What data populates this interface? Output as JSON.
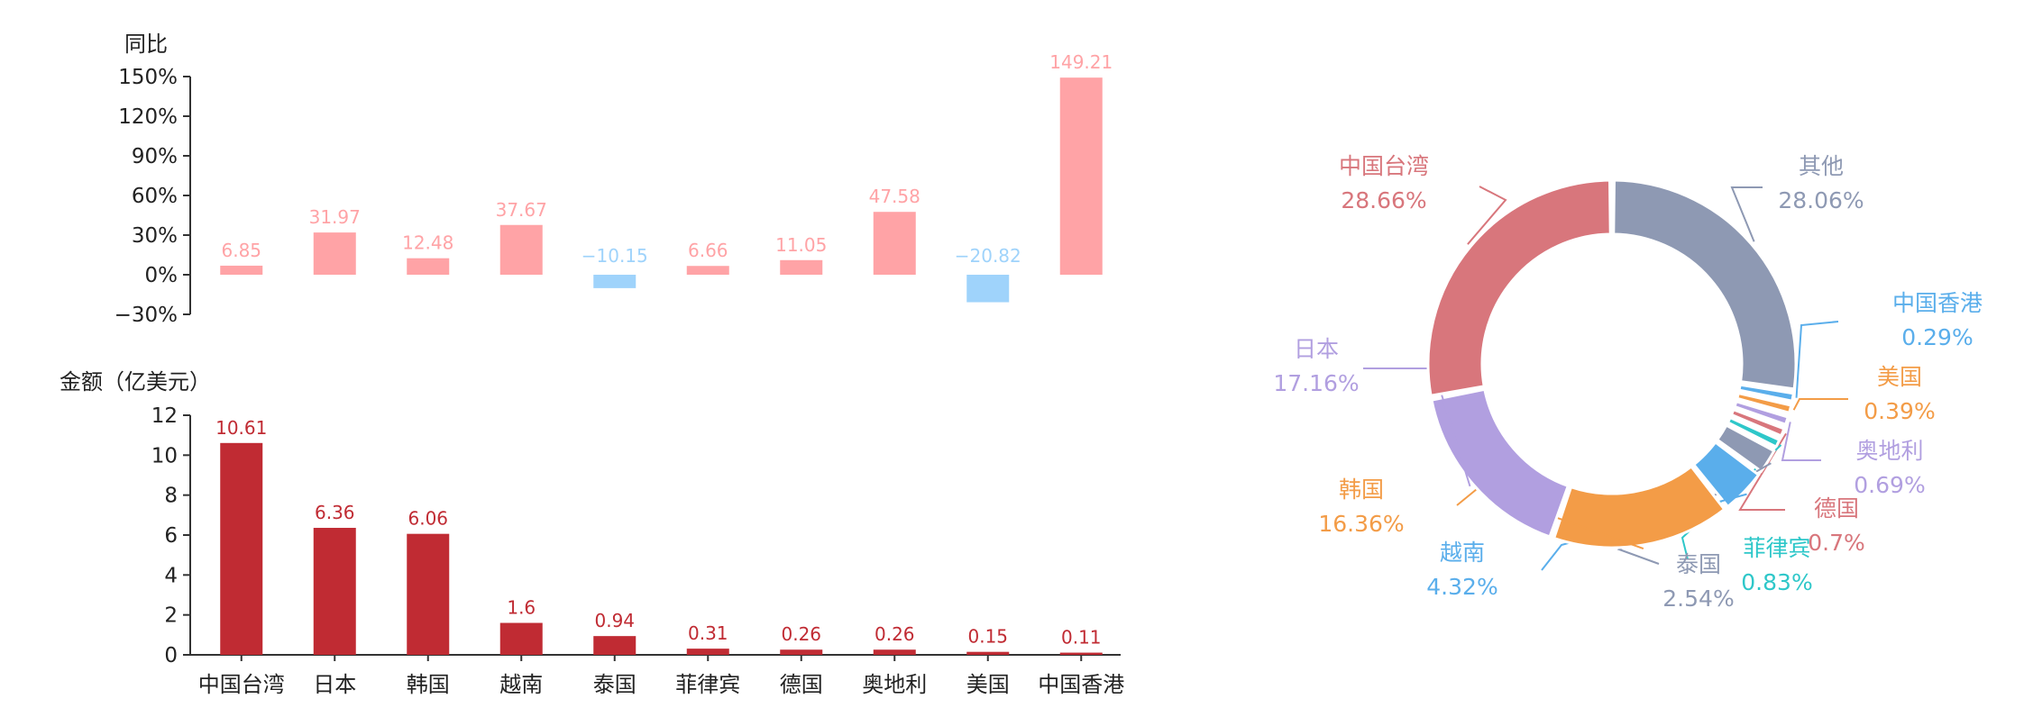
{
  "chart_data": [
    {
      "type": "bar",
      "ylabel": "同比",
      "categories": [
        "中国台湾",
        "日本",
        "韩国",
        "越南",
        "泰国",
        "菲律宾",
        "德国",
        "奥地利",
        "美国",
        "中国香港"
      ],
      "values": [
        6.85,
        31.97,
        12.48,
        37.67,
        -10.15,
        6.66,
        11.05,
        47.58,
        -20.82,
        149.21
      ],
      "value_labels": [
        "6.85",
        "31.97",
        "12.48",
        "37.67",
        "−10.15",
        "6.66",
        "11.05",
        "47.58",
        "−20.82",
        "149.21"
      ],
      "yticks": [
        "150%",
        "120%",
        "90%",
        "60%",
        "30%",
        "0%",
        "−30%"
      ],
      "ylim": [
        -30,
        150
      ],
      "colors": {
        "positive": "#FFA3A6",
        "negative": "#9FD3FB"
      }
    },
    {
      "type": "bar",
      "ylabel": "金额（亿美元）",
      "categories": [
        "中国台湾",
        "日本",
        "韩国",
        "越南",
        "泰国",
        "菲律宾",
        "德国",
        "奥地利",
        "美国",
        "中国香港"
      ],
      "values": [
        10.61,
        6.36,
        6.06,
        1.6,
        0.94,
        0.31,
        0.26,
        0.26,
        0.15,
        0.11
      ],
      "value_labels": [
        "10.61",
        "6.36",
        "6.06",
        "1.6",
        "0.94",
        "0.31",
        "0.26",
        "0.26",
        "0.15",
        "0.11"
      ],
      "yticks": [
        "12",
        "10",
        "8",
        "6",
        "4",
        "2",
        "0"
      ],
      "ylim": [
        0,
        12
      ],
      "colors": {
        "bar": "#C02B33",
        "label": "#C02B33"
      }
    },
    {
      "type": "pie",
      "donut": true,
      "slices": [
        {
          "name": "其他",
          "value": 28.06,
          "percent": "28.06%",
          "color": "#8E99B3"
        },
        {
          "name": "中国香港",
          "value": 0.29,
          "percent": "0.29%",
          "color": "#5AAEEB"
        },
        {
          "name": "美国",
          "value": 0.39,
          "percent": "0.39%",
          "color": "#F39C47"
        },
        {
          "name": "奥地利",
          "value": 0.69,
          "percent": "0.69%",
          "color": "#B19FE0"
        },
        {
          "name": "德国",
          "value": 0.7,
          "percent": "0.7%",
          "color": "#D8767C"
        },
        {
          "name": "菲律宾",
          "value": 0.83,
          "percent": "0.83%",
          "color": "#2EC7C9"
        },
        {
          "name": "泰国",
          "value": 2.54,
          "percent": "2.54%",
          "color": "#8E99B3"
        },
        {
          "name": "越南",
          "value": 4.32,
          "percent": "4.32%",
          "color": "#5AAEEB"
        },
        {
          "name": "韩国",
          "value": 16.36,
          "percent": "16.36%",
          "color": "#F39C47"
        },
        {
          "name": "日本",
          "value": 17.16,
          "percent": "17.16%",
          "color": "#B19FE0"
        },
        {
          "name": "中国台湾",
          "value": 28.66,
          "percent": "28.66%",
          "color": "#D8767C"
        }
      ]
    }
  ]
}
